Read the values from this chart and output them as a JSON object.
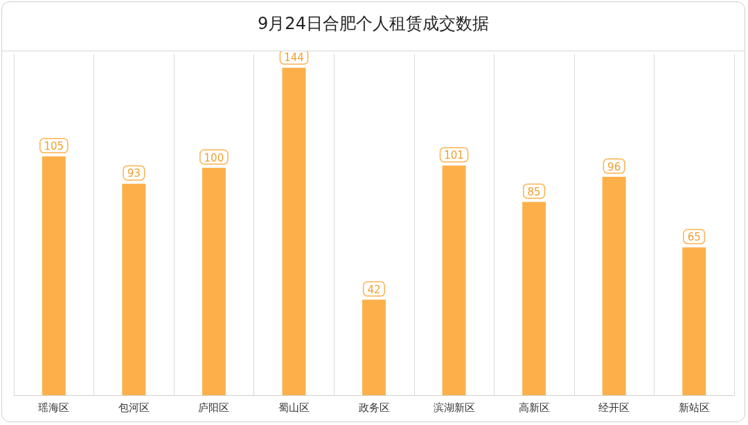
{
  "chart_data": {
    "type": "bar",
    "title": "9月24日合肥个人租赁成交数据",
    "categories": [
      "瑶海区",
      "包河区",
      "庐阳区",
      "蜀山区",
      "政务区",
      "滨湖新区",
      "高新区",
      "经开区",
      "新站区"
    ],
    "values": [
      105,
      93,
      100,
      144,
      42,
      101,
      85,
      96,
      65
    ],
    "color": "#fdb04a",
    "data_labels": true,
    "grid": "x"
  }
}
